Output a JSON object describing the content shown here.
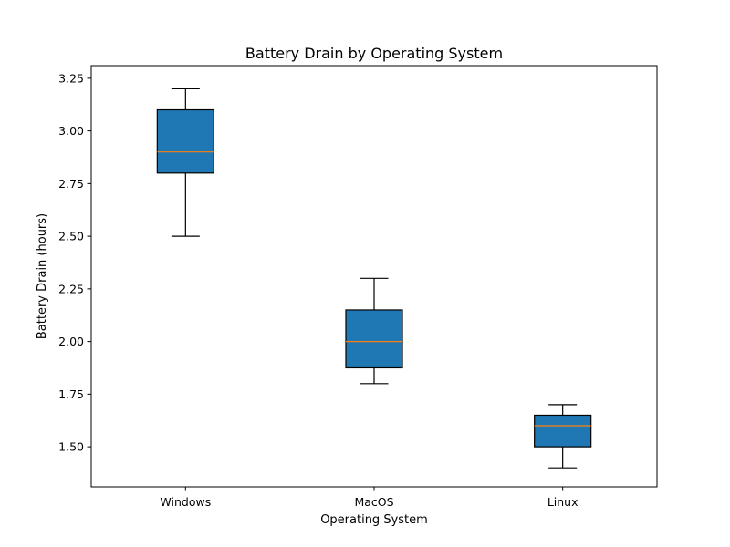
{
  "chart_data": {
    "type": "box",
    "title": "Battery Drain by Operating System",
    "xlabel": "Operating System",
    "ylabel": "Battery Drain (hours)",
    "categories": [
      "Windows",
      "MacOS",
      "Linux"
    ],
    "boxes": [
      {
        "category": "Windows",
        "whisker_low": 2.5,
        "q1": 2.8,
        "median": 2.9,
        "q3": 3.1,
        "whisker_high": 3.2
      },
      {
        "category": "MacOS",
        "whisker_low": 1.8,
        "q1": 1.875,
        "median": 2.0,
        "q3": 2.15,
        "whisker_high": 2.3
      },
      {
        "category": "Linux",
        "whisker_low": 1.4,
        "q1": 1.5,
        "median": 1.6,
        "q3": 1.65,
        "whisker_high": 1.7
      }
    ],
    "ylim": [
      1.31,
      3.31
    ],
    "yticks": [
      1.5,
      1.75,
      2.0,
      2.25,
      2.5,
      2.75,
      3.0,
      3.25
    ],
    "ytick_labels": [
      "1.50",
      "1.75",
      "2.00",
      "2.25",
      "2.50",
      "2.75",
      "3.00",
      "3.25"
    ],
    "grid": false,
    "legend": "none",
    "colors": {
      "box_fill": "#1f77b4",
      "median": "#ff7f0e",
      "edge": "#000000"
    }
  }
}
